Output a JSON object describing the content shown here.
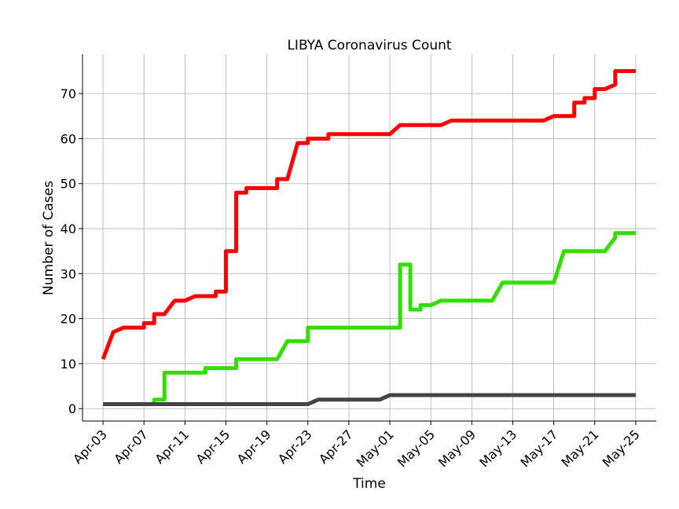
{
  "chart_data": {
    "type": "line",
    "title": "LIBYA Coronavirus Count",
    "xlabel": "Time",
    "ylabel": "Number of Cases",
    "ylim": [
      -2.75,
      78.75
    ],
    "xlim": [
      "2020-04-01",
      "2020-05-27"
    ],
    "grid": true,
    "legend": "none",
    "x_ticks": [
      "Apr-03",
      "Apr-07",
      "Apr-11",
      "Apr-15",
      "Apr-19",
      "Apr-23",
      "Apr-27",
      "May-01",
      "May-05",
      "May-09",
      "May-13",
      "May-17",
      "May-21",
      "May-25"
    ],
    "x_tick_dates": [
      "2020-04-03",
      "2020-04-07",
      "2020-04-11",
      "2020-04-15",
      "2020-04-19",
      "2020-04-23",
      "2020-04-27",
      "2020-05-01",
      "2020-05-05",
      "2020-05-09",
      "2020-05-13",
      "2020-05-17",
      "2020-05-21",
      "2020-05-25"
    ],
    "y_ticks": [
      0,
      10,
      20,
      30,
      40,
      50,
      60,
      70
    ],
    "series": [
      {
        "color": "#ff0000",
        "points": [
          [
            "2020-04-03",
            11
          ],
          [
            "2020-04-04",
            17
          ],
          [
            "2020-04-05",
            18
          ],
          [
            "2020-04-06",
            18
          ],
          [
            "2020-04-07",
            18
          ],
          [
            "2020-04-07",
            19
          ],
          [
            "2020-04-08",
            19
          ],
          [
            "2020-04-08",
            21
          ],
          [
            "2020-04-09",
            21
          ],
          [
            "2020-04-10",
            24
          ],
          [
            "2020-04-11",
            24
          ],
          [
            "2020-04-12",
            25
          ],
          [
            "2020-04-14",
            25
          ],
          [
            "2020-04-14",
            26
          ],
          [
            "2020-04-15",
            26
          ],
          [
            "2020-04-15",
            35
          ],
          [
            "2020-04-16",
            35
          ],
          [
            "2020-04-16",
            48
          ],
          [
            "2020-04-17",
            48
          ],
          [
            "2020-04-17",
            49
          ],
          [
            "2020-04-20",
            49
          ],
          [
            "2020-04-20",
            51
          ],
          [
            "2020-04-21",
            51
          ],
          [
            "2020-04-22",
            59
          ],
          [
            "2020-04-23",
            59
          ],
          [
            "2020-04-23",
            60
          ],
          [
            "2020-04-25",
            60
          ],
          [
            "2020-04-25",
            61
          ],
          [
            "2020-05-01",
            61
          ],
          [
            "2020-05-02",
            63
          ],
          [
            "2020-05-06",
            63
          ],
          [
            "2020-05-07",
            64
          ],
          [
            "2020-05-16",
            64
          ],
          [
            "2020-05-17",
            65
          ],
          [
            "2020-05-19",
            65
          ],
          [
            "2020-05-19",
            68
          ],
          [
            "2020-05-20",
            68
          ],
          [
            "2020-05-20",
            69
          ],
          [
            "2020-05-21",
            69
          ],
          [
            "2020-05-21",
            71
          ],
          [
            "2020-05-22",
            71
          ],
          [
            "2020-05-23",
            72
          ],
          [
            "2020-05-23",
            75
          ],
          [
            "2020-05-25",
            75
          ]
        ]
      },
      {
        "color": "#33dd00",
        "points": [
          [
            "2020-04-03",
            1
          ],
          [
            "2020-04-08",
            1
          ],
          [
            "2020-04-08",
            2
          ],
          [
            "2020-04-09",
            2
          ],
          [
            "2020-04-09",
            8
          ],
          [
            "2020-04-13",
            8
          ],
          [
            "2020-04-13",
            9
          ],
          [
            "2020-04-16",
            9
          ],
          [
            "2020-04-16",
            11
          ],
          [
            "2020-04-20",
            11
          ],
          [
            "2020-04-21",
            15
          ],
          [
            "2020-04-23",
            15
          ],
          [
            "2020-04-23",
            18
          ],
          [
            "2020-05-02",
            18
          ],
          [
            "2020-05-02",
            32
          ],
          [
            "2020-05-03",
            32
          ],
          [
            "2020-05-03",
            22
          ],
          [
            "2020-05-04",
            22
          ],
          [
            "2020-05-04",
            23
          ],
          [
            "2020-05-05",
            23
          ],
          [
            "2020-05-06",
            24
          ],
          [
            "2020-05-11",
            24
          ],
          [
            "2020-05-12",
            28
          ],
          [
            "2020-05-17",
            28
          ],
          [
            "2020-05-18",
            35
          ],
          [
            "2020-05-22",
            35
          ],
          [
            "2020-05-23",
            38
          ],
          [
            "2020-05-23",
            39
          ],
          [
            "2020-05-25",
            39
          ]
        ]
      },
      {
        "color": "#444444",
        "points": [
          [
            "2020-04-03",
            1
          ],
          [
            "2020-04-23",
            1
          ],
          [
            "2020-04-24",
            2
          ],
          [
            "2020-04-30",
            2
          ],
          [
            "2020-05-01",
            3
          ],
          [
            "2020-05-25",
            3
          ]
        ]
      }
    ]
  }
}
